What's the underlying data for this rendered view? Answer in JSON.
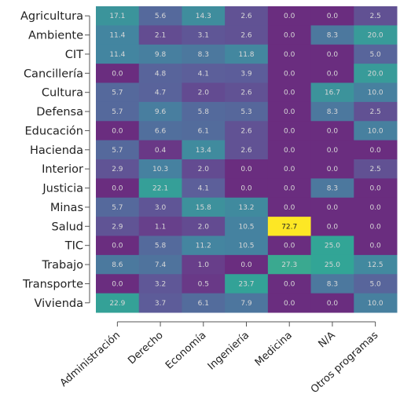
{
  "chart_data": {
    "type": "heatmap",
    "rows": [
      "Agricultura",
      "Ambiente",
      "CIT",
      "Cancillería",
      "Cultura",
      "Defensa",
      "Educación",
      "Hacienda",
      "Interior",
      "Justicia",
      "Minas",
      "Salud",
      "TIC",
      "Trabajo",
      "Transporte",
      "Vivienda"
    ],
    "columns": [
      "Administración",
      "Derecho",
      "Economía",
      "Ingeniería",
      "Medicina",
      "N/A",
      "Otros programas"
    ],
    "values": [
      [
        17.1,
        5.6,
        14.3,
        2.6,
        0.0,
        0.0,
        2.5
      ],
      [
        11.4,
        2.1,
        3.1,
        2.6,
        0.0,
        8.3,
        20.0
      ],
      [
        11.4,
        9.8,
        8.3,
        11.8,
        0.0,
        0.0,
        5.0
      ],
      [
        0.0,
        4.8,
        4.1,
        3.9,
        0.0,
        0.0,
        20.0
      ],
      [
        5.7,
        4.7,
        2.0,
        2.6,
        0.0,
        16.7,
        10.0
      ],
      [
        5.7,
        9.6,
        5.8,
        5.3,
        0.0,
        8.3,
        2.5
      ],
      [
        0.0,
        6.6,
        6.1,
        2.6,
        0.0,
        0.0,
        10.0
      ],
      [
        5.7,
        0.4,
        13.4,
        2.6,
        0.0,
        0.0,
        0.0
      ],
      [
        2.9,
        10.3,
        2.0,
        0.0,
        0.0,
        0.0,
        2.5
      ],
      [
        0.0,
        22.1,
        4.1,
        0.0,
        0.0,
        8.3,
        0.0
      ],
      [
        5.7,
        3.0,
        15.8,
        13.2,
        0.0,
        0.0,
        0.0
      ],
      [
        2.9,
        1.1,
        2.0,
        10.5,
        72.7,
        0.0,
        0.0
      ],
      [
        0.0,
        5.8,
        11.2,
        10.5,
        0.0,
        25.0,
        0.0
      ],
      [
        8.6,
        7.4,
        1.0,
        0.0,
        27.3,
        25.0,
        12.5
      ],
      [
        0.0,
        3.2,
        0.5,
        23.7,
        0.0,
        8.3,
        5.0
      ],
      [
        22.9,
        3.7,
        6.1,
        7.9,
        0.0,
        0.0,
        10.0
      ]
    ],
    "colormap": "viridis",
    "value_range": [
      0,
      100
    ],
    "colors": {
      "low": "#6a2d7f",
      "mid": "#3f6e9c",
      "high": "#fde725"
    }
  }
}
